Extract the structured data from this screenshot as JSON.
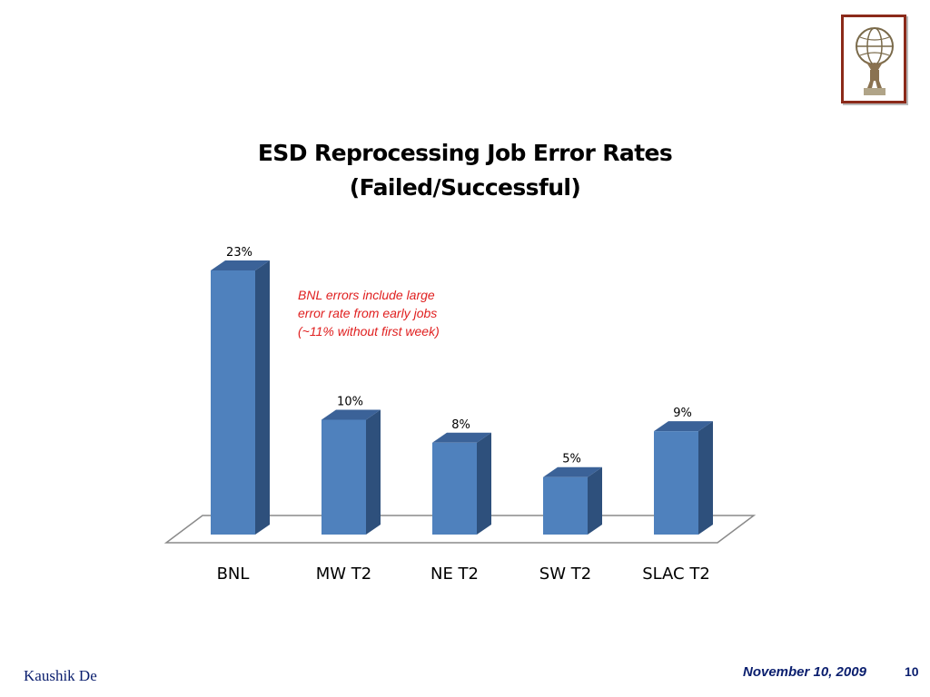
{
  "chart_data": {
    "type": "bar",
    "title": "ESD Reprocessing Job Error Rates",
    "subtitle": "(Failed/Successful)",
    "categories": [
      "BNL",
      "MW T2",
      "NE T2",
      "SW T2",
      "SLAC T2"
    ],
    "values": [
      23,
      10,
      8,
      5,
      9
    ],
    "data_labels": [
      "23%",
      "10%",
      "8%",
      "5%",
      "9%"
    ],
    "ylim": [
      0,
      23
    ],
    "xlabel": "",
    "ylabel": "",
    "grid": false,
    "style": "3d-column",
    "colors": {
      "bar_front": "#4f81bd",
      "bar_side": "#2e507c",
      "bar_top": "#3b6298",
      "floor_edge": "#8a8a8a"
    },
    "annotations": [
      "BNL errors include large",
      "error rate from early jobs",
      "(~11% without first week)"
    ],
    "annotation_color": "#e02020"
  },
  "logo": {
    "icon": "atlas-statue-icon",
    "frame_color": "#8b2a1a"
  },
  "footer": {
    "author": "Kaushik De",
    "date": "November 10, 2009",
    "page": "10",
    "text_color": "#0a1e6e"
  }
}
